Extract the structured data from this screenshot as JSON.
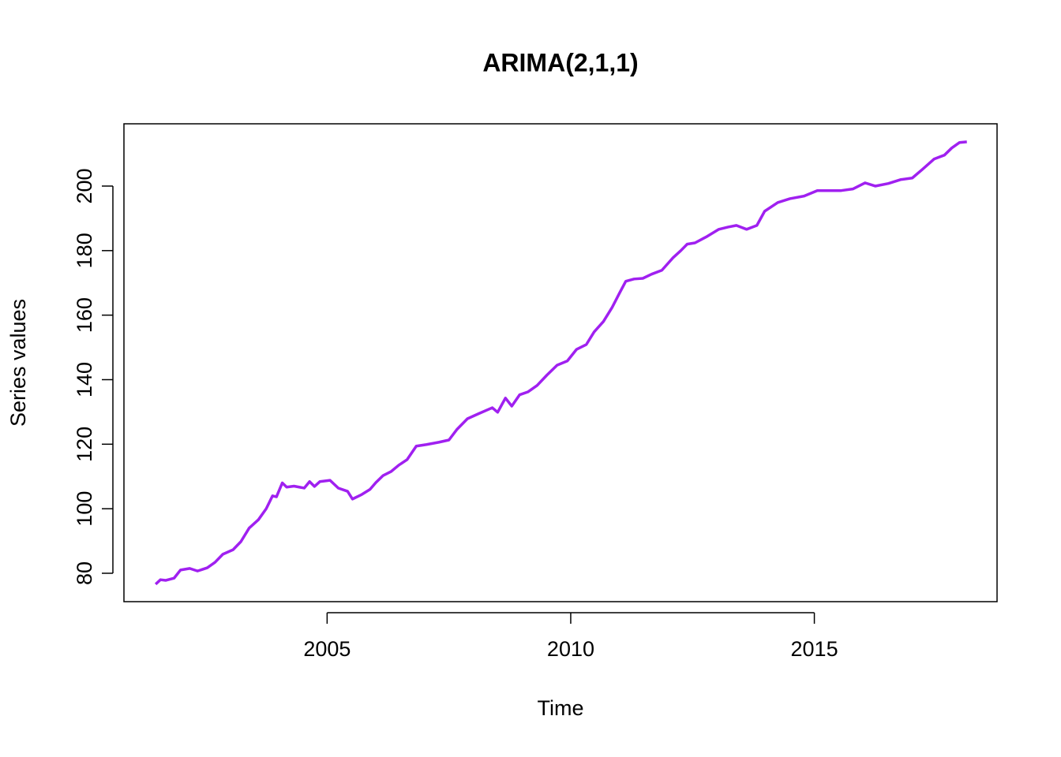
{
  "chart_data": {
    "type": "line",
    "title": "ARIMA(2,1,1)",
    "xlabel": "Time",
    "ylabel": "Series values",
    "x": [
      2001.48,
      2001.58,
      2001.69,
      2001.86,
      2001.99,
      2002.18,
      2002.34,
      2002.54,
      2002.7,
      2002.86,
      2003.07,
      2003.23,
      2003.4,
      2003.59,
      2003.75,
      2003.88,
      2003.96,
      2004.08,
      2004.17,
      2004.32,
      2004.53,
      2004.64,
      2004.74,
      2004.85,
      2005.06,
      2005.23,
      2005.42,
      2005.52,
      2005.71,
      2005.88,
      2006.0,
      2006.15,
      2006.31,
      2006.47,
      2006.64,
      2006.83,
      2007.04,
      2007.29,
      2007.5,
      2007.66,
      2007.88,
      2008.1,
      2008.39,
      2008.5,
      2008.66,
      2008.79,
      2008.95,
      2009.12,
      2009.31,
      2009.51,
      2009.72,
      2009.93,
      2010.12,
      2010.32,
      2010.48,
      2010.67,
      2010.85,
      2011.0,
      2011.13,
      2011.3,
      2011.48,
      2011.66,
      2011.87,
      2012.0,
      2012.1,
      2012.26,
      2012.39,
      2012.55,
      2012.8,
      2013.04,
      2013.23,
      2013.4,
      2013.61,
      2013.82,
      2013.98,
      2014.25,
      2014.5,
      2014.79,
      2015.06,
      2015.31,
      2015.55,
      2015.79,
      2016.04,
      2016.25,
      2016.52,
      2016.77,
      2017.01,
      2017.22,
      2017.46,
      2017.67,
      2017.82,
      2017.98,
      2018.13
    ],
    "series": [
      {
        "name": "Series values",
        "color": "#a020f0",
        "values": [
          76.6,
          78.0,
          77.8,
          78.5,
          81.0,
          81.5,
          80.7,
          81.7,
          83.4,
          85.9,
          87.3,
          89.8,
          94.0,
          96.6,
          100.0,
          104.0,
          103.7,
          108.0,
          106.7,
          107.0,
          106.4,
          108.4,
          106.9,
          108.4,
          108.8,
          106.4,
          105.4,
          103.0,
          104.4,
          106.0,
          108.1,
          110.3,
          111.5,
          113.5,
          115.2,
          119.4,
          119.9,
          120.6,
          121.3,
          124.5,
          127.9,
          129.4,
          131.3,
          129.9,
          134.3,
          131.8,
          135.3,
          136.2,
          138.2,
          141.4,
          144.5,
          145.8,
          149.4,
          150.9,
          154.8,
          158.0,
          162.4,
          166.8,
          170.5,
          171.2,
          171.4,
          172.7,
          173.9,
          176.1,
          177.8,
          180.0,
          182.0,
          182.4,
          184.4,
          186.6,
          187.3,
          187.8,
          186.6,
          187.8,
          192.2,
          194.9,
          196.1,
          196.9,
          198.6,
          198.6,
          198.6,
          199.1,
          201.0,
          200.0,
          200.8,
          202.0,
          202.5,
          205.2,
          208.4,
          209.6,
          211.8,
          213.5,
          213.7
        ]
      }
    ],
    "xlim": [
      2000.83,
      2018.75
    ],
    "xticks": [
      2005,
      2010,
      2015
    ],
    "ylim": [
      71.2,
      219.3
    ],
    "yticks": [
      80,
      100,
      120,
      140,
      160,
      180,
      200
    ]
  }
}
